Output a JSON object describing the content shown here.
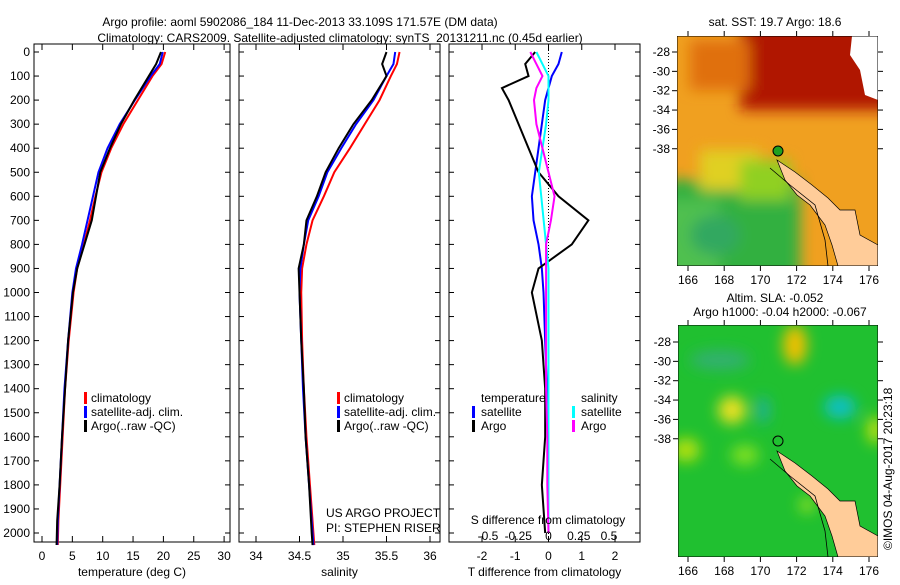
{
  "title": {
    "line1": "Argo profile: aoml 5902086_184 11-Dec-2013 33.109S 171.57E (DM data)",
    "line2": "Climatology: CARS2009. Satellite-adjusted climatology: synTS_20131211.nc (0.45d earlier)"
  },
  "colors": {
    "climatology": "#ff0000",
    "satellite": "#0000ff",
    "argo": "#000000",
    "sal_satellite": "#00ffff",
    "sal_argo": "#ff00ff",
    "land": "#ffcc99"
  },
  "chart_data": [
    {
      "type": "line",
      "xlabel": "temperature (deg C)",
      "ylabel": "depth",
      "xlim": [
        -2,
        32
      ],
      "ylim": [
        2080,
        0
      ],
      "xticks": [
        "0",
        "5",
        "10",
        "15",
        "20",
        "25",
        "30"
      ],
      "yticks": [
        "0",
        "100",
        "200",
        "300",
        "400",
        "500",
        "600",
        "700",
        "800",
        "900",
        "1000",
        "1100",
        "1200",
        "1300",
        "1400",
        "1500",
        "1600",
        "1700",
        "1800",
        "1900",
        "2000"
      ],
      "legend": [
        "climatology",
        "satellite-adj. clim.",
        "Argo(..raw -QC)"
      ],
      "depth": [
        0,
        50,
        100,
        200,
        300,
        400,
        500,
        600,
        700,
        800,
        900,
        1000,
        1200,
        1400,
        1600,
        1800,
        1950,
        2050
      ],
      "series": [
        {
          "name": "climatology",
          "values": [
            20.3,
            19.7,
            18.2,
            15.8,
            13.4,
            11.4,
            9.8,
            8.8,
            7.9,
            6.9,
            5.8,
            5.2,
            4.4,
            3.8,
            3.4,
            3.0,
            2.7,
            2.6
          ]
        },
        {
          "name": "satellite-adj. clim.",
          "values": [
            19.9,
            19.4,
            17.9,
            15.3,
            12.8,
            10.8,
            9.3,
            8.4,
            7.5,
            6.6,
            5.6,
            5.0,
            4.3,
            3.7,
            3.3,
            2.9,
            2.6,
            2.5
          ]
        },
        {
          "name": "Argo(..raw -QC)",
          "values": [
            19.6,
            18.8,
            17.6,
            15.2,
            13.0,
            11.2,
            9.6,
            8.9,
            8.2,
            7.0,
            5.8,
            5.1,
            4.3,
            3.8,
            3.3,
            2.9,
            2.5,
            2.4
          ]
        }
      ]
    },
    {
      "type": "line",
      "xlabel": "salinity",
      "xlim": [
        33.8,
        36.1
      ],
      "ylim": [
        2080,
        0
      ],
      "xticks": [
        "34",
        "34.5",
        "35",
        "35.5",
        "36"
      ],
      "legend": [
        "climatology",
        "satellite-adj. clim.",
        "Argo(..raw -QC)"
      ],
      "annotation": [
        "US ARGO PROJECT",
        "PI: STEPHEN RISER"
      ],
      "depth": [
        0,
        50,
        100,
        200,
        300,
        400,
        500,
        600,
        700,
        800,
        900,
        1000,
        1200,
        1400,
        1600,
        1800,
        2000,
        2050
      ],
      "series": [
        {
          "name": "climatology",
          "values": [
            35.65,
            35.62,
            35.55,
            35.42,
            35.25,
            35.08,
            34.9,
            34.78,
            34.65,
            34.58,
            34.53,
            34.52,
            34.53,
            34.55,
            34.58,
            34.62,
            34.66,
            34.67
          ]
        },
        {
          "name": "satellite-adj. clim.",
          "values": [
            35.6,
            35.58,
            35.5,
            35.35,
            35.15,
            34.98,
            34.82,
            34.72,
            34.6,
            34.55,
            34.51,
            34.5,
            34.52,
            34.54,
            34.57,
            34.61,
            34.65,
            34.66
          ]
        },
        {
          "name": "Argo(..raw -QC)",
          "values": [
            35.5,
            35.45,
            35.5,
            35.33,
            35.12,
            34.95,
            34.8,
            34.7,
            34.58,
            34.55,
            34.49,
            34.5,
            34.52,
            34.55,
            34.57,
            34.61,
            34.64,
            34.65
          ]
        }
      ]
    },
    {
      "type": "line",
      "xlabel": "T difference from climatology",
      "xlabel2": "S difference from climatology",
      "xlim": [
        -3,
        3
      ],
      "ylim": [
        2080,
        0
      ],
      "xticks": [
        "-2",
        "-1",
        "0",
        "1",
        "2"
      ],
      "xticks2": [
        "-0.5",
        "-0.25",
        "0",
        "0.25",
        "0.5"
      ],
      "legend_title_t": "temperature",
      "legend_title_s": "salinity",
      "legend": [
        "satellite",
        "Argo",
        "satellite",
        "Argo"
      ],
      "depth": [
        0,
        50,
        100,
        150,
        200,
        300,
        400,
        500,
        600,
        700,
        800,
        900,
        1000,
        1200,
        1400,
        1600,
        1800,
        2000
      ],
      "series": [
        {
          "name": "T satellite",
          "values": [
            0.4,
            0.3,
            0.1,
            0.0,
            -0.1,
            -0.2,
            -0.3,
            -0.4,
            -0.5,
            -0.45,
            -0.3,
            -0.2,
            -0.15,
            -0.1,
            -0.05,
            0,
            0,
            0
          ]
        },
        {
          "name": "T Argo",
          "values": [
            -0.4,
            -0.7,
            -0.6,
            -1.4,
            -1.2,
            -0.9,
            -0.6,
            -0.3,
            0.3,
            1.2,
            0.7,
            -0.3,
            -0.5,
            -0.2,
            -0.1,
            -0.1,
            -0.2,
            -0.1
          ]
        },
        {
          "name": "S satellite",
          "values": [
            -0.1,
            -0.05,
            0,
            0,
            0,
            -0.02,
            -0.05,
            -0.08,
            -0.06,
            -0.04,
            -0.02,
            0,
            0,
            0,
            0,
            0,
            0,
            0
          ]
        },
        {
          "name": "S Argo",
          "values": [
            -0.15,
            -0.1,
            -0.05,
            -0.1,
            -0.12,
            -0.1,
            -0.05,
            0,
            0.05,
            0.02,
            -0.02,
            -0.02,
            -0.02,
            -0.02,
            -0.02,
            -0.01,
            -0.01,
            0
          ]
        }
      ]
    }
  ],
  "maps": {
    "sst_title": "sat. SST: 19.7 Argo: 18.6",
    "sla_title1": "Altim. SLA: -0.052",
    "sla_title2": "Argo h1000: -0.04 h2000: -0.067",
    "lon_ticks": [
      "166",
      "168",
      "170",
      "172",
      "174",
      "176"
    ],
    "lat_ticks": [
      "-28",
      "-30",
      "-32",
      "-34",
      "-36",
      "-38"
    ],
    "argo_lon": 171.57,
    "argo_lat": -33.109
  },
  "footer": "©IMOS 04-Aug-2017 20:23:18"
}
